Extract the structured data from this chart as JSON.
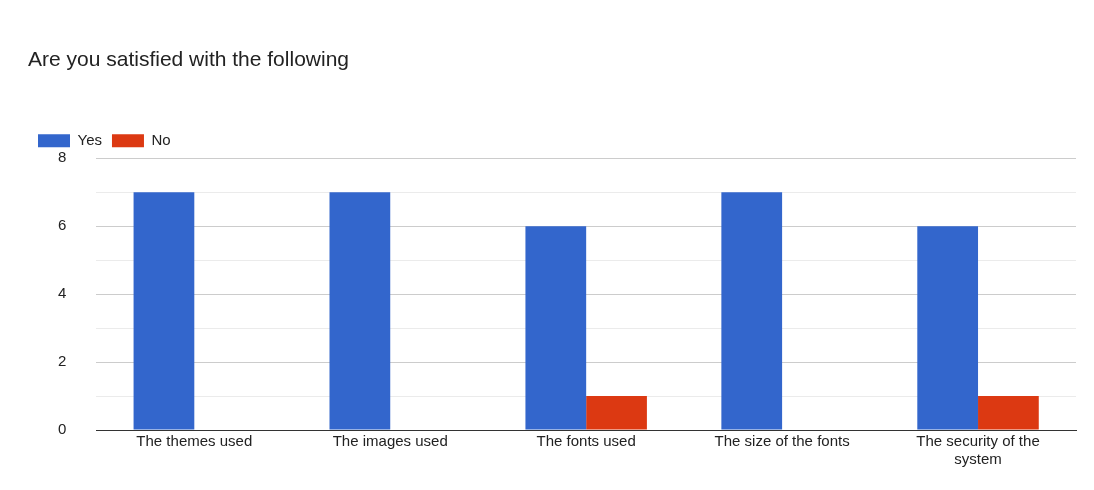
{
  "chart_data": {
    "type": "bar",
    "title": "Are you satisfied with the following",
    "categories": [
      "The themes used",
      "The images used",
      "The fonts used",
      "The size of the fonts",
      "The security of the system"
    ],
    "series": [
      {
        "name": "Yes",
        "color": "#3366cc",
        "values": [
          7,
          7,
          6,
          7,
          6
        ]
      },
      {
        "name": "No",
        "color": "#dc3912",
        "values": [
          0,
          0,
          1,
          0,
          1
        ]
      }
    ],
    "ylim": [
      0,
      8
    ],
    "yticks": [
      0,
      {
        "value": 1,
        "label": null
      },
      2,
      {
        "value": 3,
        "label": null
      },
      4,
      {
        "value": 5,
        "label": null
      },
      6,
      {
        "value": 7,
        "label": null
      },
      8
    ],
    "grid": "y",
    "legend": "top left"
  }
}
